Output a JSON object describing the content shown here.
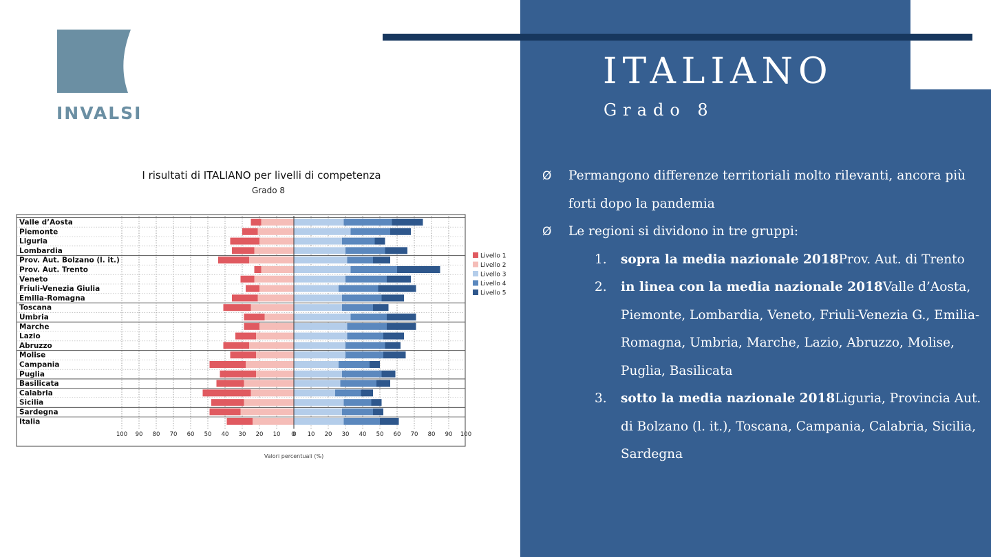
{
  "header": {
    "title": "ITALIANO",
    "subtitle": "Grado 8",
    "logo_text": "INVALSI"
  },
  "colors": {
    "panel_blue": "#365f91",
    "top_bar": "#17375e",
    "logo": "#6b8fa3"
  },
  "bullets": [
    {
      "icon": "arrow-bullet-icon",
      "marker": "Ø",
      "text": "Permangono differenze territoriali molto rilevanti, ancora più forti dopo la pandemia"
    },
    {
      "icon": "arrow-bullet-icon",
      "marker": "Ø",
      "text": "Le regioni si dividono in tre gruppi:",
      "groups": [
        {
          "num": "1.",
          "bold": "sopra la media nazionale 2018",
          "text": "Prov. Aut. di Trento"
        },
        {
          "num": "2.",
          "bold": "in linea con la media nazionale 2018",
          "text": "Valle d’Aosta, Piemonte, Lombardia, Veneto, Friuli-Venezia G., Emilia-Romagna, Umbria, Marche, Lazio, Abruzzo, Molise, Puglia, Basilicata"
        },
        {
          "num": "3.",
          "bold": "sotto la media nazionale 2018",
          "text": "Liguria, Provincia Aut. di Bolzano (l. it.), Toscana, Campania, Calabria, Sicilia, Sardegna"
        }
      ]
    }
  ],
  "chart_data": {
    "type": "bar",
    "orientation": "horizontal-diverging",
    "title": "I risultati di ITALIANO per livelli di competenza",
    "subtitle": "Grado 8",
    "xlabel": "Valori percentuali (%)",
    "xticks": [
      "100",
      "90",
      "80",
      "70",
      "60",
      "50",
      "40",
      "30",
      "20",
      "10",
      "0",
      "0",
      "10",
      "20",
      "30",
      "40",
      "50",
      "60",
      "70",
      "80",
      "90",
      "100"
    ],
    "legend_position": "right",
    "categories": [
      "Valle d’Aosta",
      "Piemonte",
      "Liguria",
      "Lombardia",
      "Prov. Aut. Bolzano (l. it.)",
      "Prov. Aut. Trento",
      "Veneto",
      "Friuli-Venezia Giulia",
      "Emilia-Romagna",
      "Toscana",
      "Umbria",
      "Marche",
      "Lazio",
      "Abruzzo",
      "Molise",
      "Campania",
      "Puglia",
      "Basilicata",
      "Calabria",
      "Sicilia",
      "Sardegna",
      "Italia"
    ],
    "series": [
      {
        "name": "Livello 1",
        "color": "#e05a60",
        "side": "left",
        "values": [
          6,
          9,
          17,
          13,
          18,
          4,
          8,
          8,
          15,
          16,
          12,
          9,
          12,
          15,
          15,
          21,
          21,
          16,
          28,
          19,
          18,
          15
        ]
      },
      {
        "name": "Livello 2",
        "color": "#f5bdb8",
        "side": "left",
        "values": [
          19,
          21,
          20,
          23,
          26,
          19,
          23,
          20,
          21,
          25,
          17,
          20,
          22,
          26,
          22,
          28,
          22,
          29,
          25,
          29,
          31,
          24
        ]
      },
      {
        "name": "Livello 3",
        "color": "#b4cdea",
        "side": "right",
        "values": [
          29,
          33,
          28,
          30,
          31,
          33,
          30,
          26,
          28,
          28,
          33,
          31,
          31,
          30,
          30,
          26,
          28,
          27,
          24,
          29,
          28,
          29
        ]
      },
      {
        "name": "Livello 4",
        "color": "#5b88be",
        "side": "right",
        "values": [
          28,
          23,
          19,
          23,
          15,
          27,
          24,
          23,
          23,
          18,
          21,
          23,
          21,
          23,
          22,
          18,
          23,
          21,
          15,
          16,
          18,
          21
        ]
      },
      {
        "name": "Livello 5",
        "color": "#2e578c",
        "side": "right",
        "values": [
          18,
          12,
          6,
          13,
          10,
          25,
          14,
          22,
          13,
          9,
          17,
          17,
          12,
          9,
          13,
          6,
          8,
          8,
          7,
          6,
          6,
          11
        ]
      }
    ]
  }
}
